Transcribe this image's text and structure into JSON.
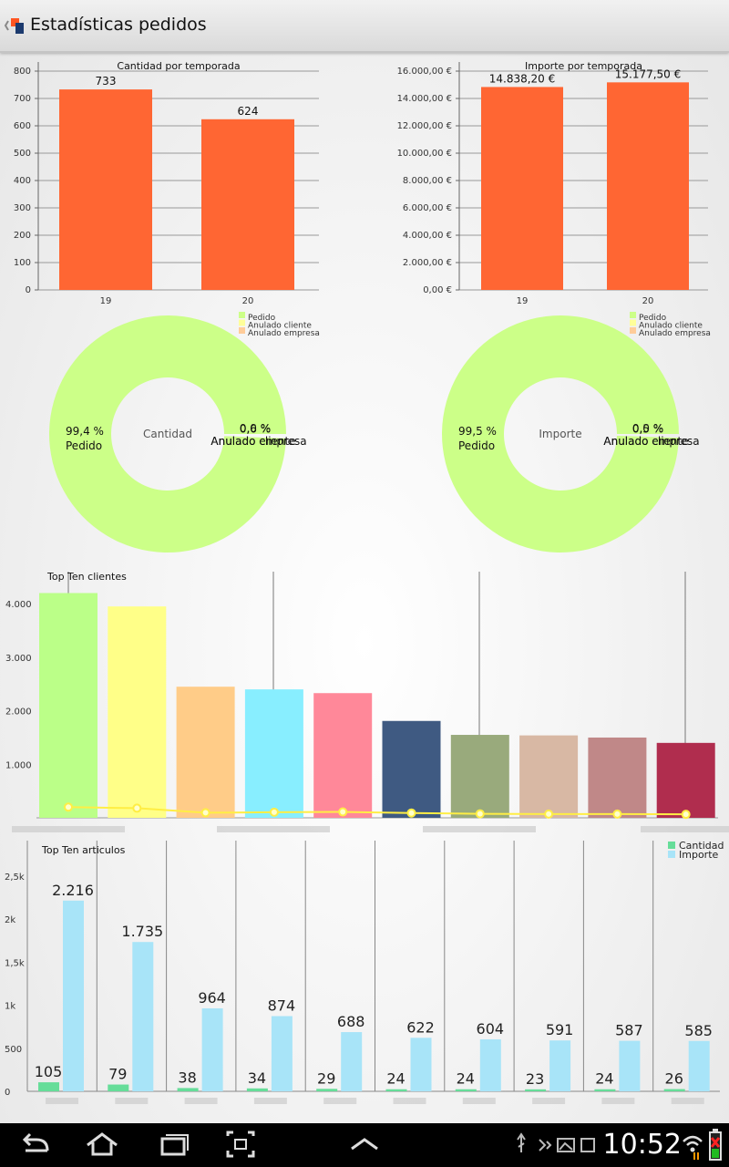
{
  "app": {
    "title": "Estadísticas pedidos"
  },
  "colors": {
    "bar_orange": "#ff6633",
    "donut_green": "#ccff88",
    "legend_yellow": "#ffff99",
    "legend_peach": "#ffcc99",
    "cantidad_green": "#66dd99",
    "importe_blue": "#a8e4f8"
  },
  "chart_data": [
    {
      "type": "bar",
      "title": "Cantidad por temporada",
      "categories": [
        "19",
        "20"
      ],
      "values": [
        733,
        624
      ],
      "value_labels": [
        "733",
        "624"
      ],
      "ylim": [
        0,
        800
      ],
      "yticks": [
        "0",
        "100",
        "200",
        "300",
        "400",
        "500",
        "600",
        "700",
        "800"
      ]
    },
    {
      "type": "bar",
      "title": "Importe por temporada",
      "categories": [
        "19",
        "20"
      ],
      "values": [
        14838.2,
        15177.5
      ],
      "value_labels": [
        "14.838,20 €",
        "15.177,50 €"
      ],
      "ylim": [
        0,
        16000
      ],
      "yticks": [
        "0,00 €",
        "2.000,00 €",
        "4.000,00 €",
        "6.000,00 €",
        "8.000,00 €",
        "10.000,00 €",
        "12.000,00 €",
        "14.000,00 €",
        "16.000,00 €"
      ]
    },
    {
      "type": "pie",
      "center_label": "Cantidad",
      "legend": [
        "Pedido",
        "Anulado cliente",
        "Anulado empresa"
      ],
      "values": [
        99.4,
        0.0,
        0.6
      ],
      "slice_labels": [
        {
          "pct": "99,4 %",
          "name": "Pedido"
        },
        {
          "pct": "0,0 %",
          "name": "Anulado cliente"
        },
        {
          "pct": "0,6 %",
          "name": "Anulado empresa"
        }
      ]
    },
    {
      "type": "pie",
      "center_label": "Importe",
      "legend": [
        "Pedido",
        "Anulado cliente",
        "Anulado empresa"
      ],
      "values": [
        99.5,
        0.0,
        0.5
      ],
      "slice_labels": [
        {
          "pct": "99,5 %",
          "name": "Pedido"
        },
        {
          "pct": "0,0 %",
          "name": "Anulado cliente"
        },
        {
          "pct": "0,5 %",
          "name": "Anulado empresa"
        }
      ]
    },
    {
      "type": "bar",
      "title": "Top Ten clientes",
      "values": [
        4200,
        3950,
        2450,
        2400,
        2330,
        1810,
        1550,
        1540,
        1500,
        1400
      ],
      "line_values": [
        200,
        180,
        95,
        105,
        110,
        90,
        75,
        70,
        70,
        65
      ],
      "bar_colors": [
        "#bbff88",
        "#ffff88",
        "#ffcc88",
        "#88eeff",
        "#ff8899",
        "#3f5a82",
        "#99aa7c",
        "#d8b8a4",
        "#c08888",
        "#b02d4e"
      ],
      "line_color": "#ffee44",
      "ylim": [
        0,
        4600
      ],
      "yticks": [
        "1.000",
        "2.000",
        "3.000",
        "4.000"
      ],
      "ytick_values": [
        1000,
        2000,
        3000,
        4000
      ]
    },
    {
      "type": "bar",
      "title": "Top Ten articulos",
      "series": [
        {
          "name": "Cantidad",
          "values": [
            105,
            79,
            38,
            34,
            29,
            24,
            24,
            23,
            24,
            26
          ]
        },
        {
          "name": "Importe",
          "values": [
            2216,
            1735,
            964,
            874,
            688,
            622,
            604,
            591,
            587,
            585
          ]
        }
      ],
      "value_labels": {
        "cantidad": [
          "105",
          "79",
          "38",
          "34",
          "29",
          "24",
          "24",
          "23",
          "24",
          "26"
        ],
        "importe": [
          "2.216",
          "1.735",
          "964",
          "874",
          "688",
          "622",
          "604",
          "591",
          "587",
          "585"
        ]
      },
      "ylim": [
        0,
        2650
      ],
      "yticks": [
        "0",
        "500",
        "1k",
        "1,5k",
        "2k",
        "2,5k"
      ],
      "ytick_values": [
        0,
        500,
        1000,
        1500,
        2000,
        2500
      ]
    }
  ],
  "status": {
    "time": "10:52"
  }
}
